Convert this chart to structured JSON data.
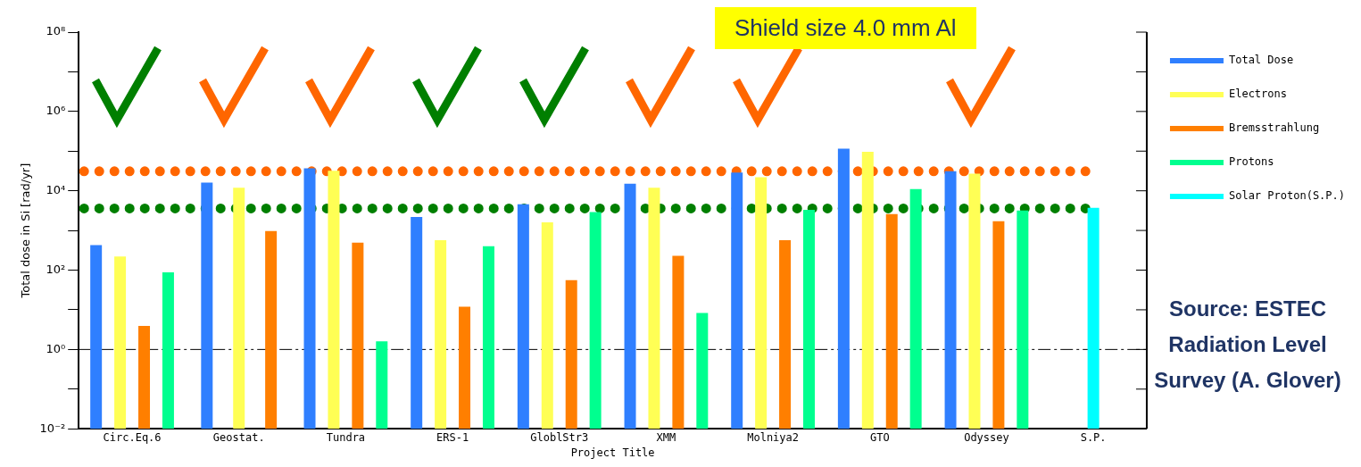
{
  "chart_data": {
    "type": "bar",
    "xlabel": "Project Title",
    "ylabel": "Total dose in Si [rad/yr]",
    "categories": [
      "Circ.Eq.6",
      "Geostat.",
      "Tundra",
      "ERS-1",
      "GloblStr3",
      "XMM",
      "Molniya2",
      "GTO",
      "Odyssey",
      "S.P."
    ],
    "series": [
      {
        "name": "Total Dose",
        "color": "#2f7fff",
        "values": [
          430,
          16000,
          37000,
          2200,
          4600,
          15000,
          29000,
          115000,
          31000,
          null
        ]
      },
      {
        "name": "Electrons",
        "color": "#ffff55",
        "values": [
          220,
          12000,
          32000,
          570,
          1600,
          12000,
          22000,
          96000,
          27000,
          null
        ]
      },
      {
        "name": "Bremsstrahlung",
        "color": "#ff7f00",
        "values": [
          3.9,
          970,
          490,
          12,
          56,
          230,
          570,
          2600,
          1700,
          null
        ]
      },
      {
        "name": "Protons",
        "color": "#00ff8f",
        "values": [
          88,
          null,
          1.6,
          400,
          2900,
          8.3,
          3300,
          11000,
          3200,
          null
        ]
      },
      {
        "name": "Solar Proton(S.P.)",
        "color": "#00ffff",
        "values": [
          null,
          null,
          null,
          null,
          null,
          null,
          null,
          null,
          null,
          3700
        ]
      }
    ],
    "log": "y",
    "ylim": [
      0.01,
      100000000
    ],
    "yticks": [
      {
        "value": 0.01,
        "label": "10⁻²"
      },
      {
        "value": 0.1,
        "label": null
      },
      {
        "value": 1,
        "label": "10⁰"
      },
      {
        "value": 10,
        "label": null
      },
      {
        "value": 100,
        "label": "10²"
      },
      {
        "value": 1000,
        "label": null
      },
      {
        "value": 10000,
        "label": "10⁴"
      },
      {
        "value": 100000,
        "label": null
      },
      {
        "value": 1000000,
        "label": "10⁶"
      },
      {
        "value": 10000000,
        "label": null
      },
      {
        "value": 100000000,
        "label": "10⁸"
      }
    ],
    "ref_lines": [
      {
        "axis": "y",
        "value": 31000,
        "color": "#ff6600",
        "line_style": "dotted"
      },
      {
        "axis": "y",
        "value": 3600,
        "color": "#007f00",
        "line_style": "dotted"
      },
      {
        "axis": "y",
        "value": 1,
        "color": "#000000",
        "line_style": "dashed"
      }
    ],
    "annotations": [
      "Shield size 4.0 mm Al",
      "Source: ESTEC Radiation Level Survey (A. Glover)"
    ],
    "legend": "right",
    "grid": false
  }
}
